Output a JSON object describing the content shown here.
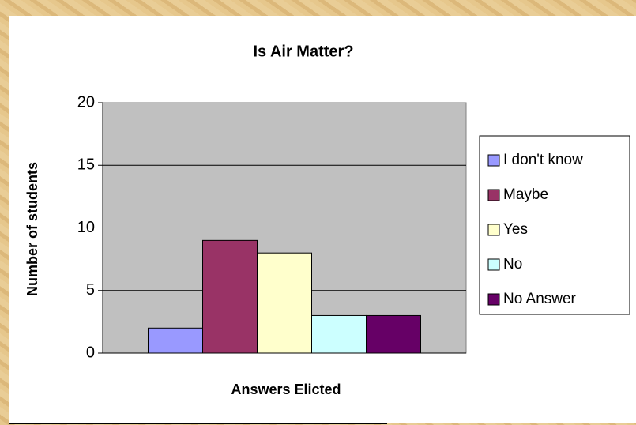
{
  "chart_data": {
    "type": "bar",
    "title": "Is Air Matter?",
    "x_label": "Answers Elicted",
    "y_label": "Number of students",
    "series": [
      {
        "name": "I don't know",
        "color": "#9999ff",
        "values": [
          2
        ]
      },
      {
        "name": "Maybe",
        "color": "#993366",
        "values": [
          9
        ]
      },
      {
        "name": "Yes",
        "color": "#ffffcc",
        "values": [
          8
        ]
      },
      {
        "name": "No",
        "color": "#ccffff",
        "values": [
          3
        ]
      },
      {
        "name": "No Answer",
        "color": "#660066",
        "values": [
          3
        ]
      }
    ],
    "ylim": [
      0,
      20
    ],
    "yticks": [
      0,
      5,
      10,
      15,
      20
    ],
    "grid": true,
    "legend": "right"
  }
}
